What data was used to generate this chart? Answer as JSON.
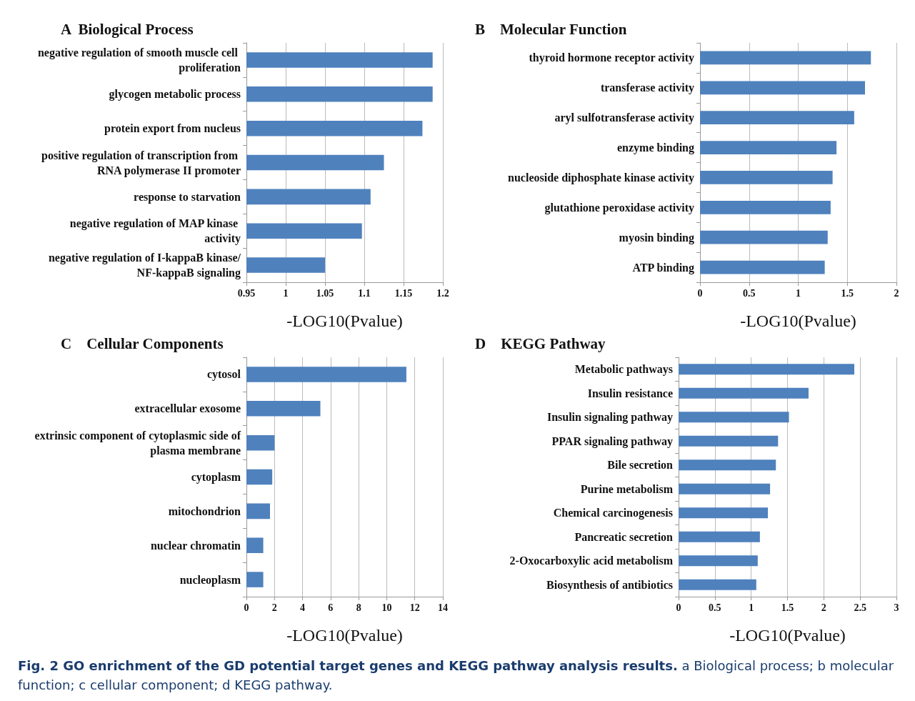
{
  "chart_data": [
    {
      "type": "bar",
      "orientation": "horizontal",
      "title": "A  Biological Process",
      "xlabel": "-LOG10(Pvalue)",
      "categories": [
        "negative regulation of smooth muscle cell proliferation",
        "glycogen metabolic process",
        "protein export from nucleus",
        "positive regulation of transcription from RNA polymerase II promoter",
        "response to starvation",
        "negative regulation of MAP kinase activity",
        "negative regulation of I-kappaB kinase/NF-kappaB signaling"
      ],
      "values": [
        1.187,
        1.187,
        1.174,
        1.125,
        1.108,
        1.097,
        1.05
      ],
      "color": "#4f81bd",
      "xlim": [
        0.95,
        1.2
      ],
      "xticks": [
        0.95,
        1,
        1.05,
        1.1,
        1.15,
        1.2
      ],
      "grid": "x"
    },
    {
      "type": "bar",
      "orientation": "horizontal",
      "title": "B    Molecular Function",
      "xlabel": "-LOG10(Pvalue)",
      "categories": [
        "thyroid hormone receptor activity",
        "transferase activity",
        "aryl sulfotransferase activity",
        "enzyme binding",
        "nucleoside diphosphate kinase activity",
        "glutathione peroxidase activity",
        "myosin binding",
        "ATP binding"
      ],
      "values": [
        1.74,
        1.68,
        1.57,
        1.39,
        1.35,
        1.33,
        1.3,
        1.27
      ],
      "color": "#4f81bd",
      "xlim": [
        0,
        2
      ],
      "xticks": [
        0,
        0.5,
        1,
        1.5,
        2
      ],
      "grid": "x"
    },
    {
      "type": "bar",
      "orientation": "horizontal",
      "title": "C    Cellular Components",
      "xlabel": "-LOG10(Pvalue)",
      "categories": [
        "cytosol",
        "extracellular exosome",
        "extrinsic component of cytoplasmic side of plasma membrane",
        "cytoplasm",
        "mitochondrion",
        "nuclear chromatin",
        "nucleoplasm"
      ],
      "values": [
        11.4,
        5.27,
        2.0,
        1.84,
        1.68,
        1.2,
        1.2
      ],
      "color": "#4f81bd",
      "xlim": [
        0,
        14
      ],
      "xticks": [
        0,
        2,
        4,
        6,
        8,
        10,
        12,
        14
      ],
      "grid": "x"
    },
    {
      "type": "bar",
      "orientation": "horizontal",
      "title": "D    KEGG Pathway",
      "xlabel": "-LOG10(Pvalue)",
      "categories": [
        "Metabolic pathways",
        "Insulin resistance",
        "Insulin signaling pathway",
        "PPAR signaling pathway",
        "Bile secretion",
        "Purine metabolism",
        "Chemical carcinogenesis",
        "Pancreatic secretion",
        "2-Oxocarboxylic acid metabolism",
        "Biosynthesis of antibiotics"
      ],
      "values": [
        2.42,
        1.79,
        1.52,
        1.37,
        1.34,
        1.26,
        1.23,
        1.12,
        1.09,
        1.07
      ],
      "color": "#4f81bd",
      "xlim": [
        0,
        3
      ],
      "xticks": [
        0,
        0.5,
        1,
        1.5,
        2,
        2.5,
        3
      ],
      "grid": "x",
      "annotations": [
        "Fig. 2 GO enrichment of the GD potential target genes and KEGG pathway analysis results.",
        "a Biological process; b molecular function; c cellular component; d KEGG pathway."
      ]
    }
  ]
}
